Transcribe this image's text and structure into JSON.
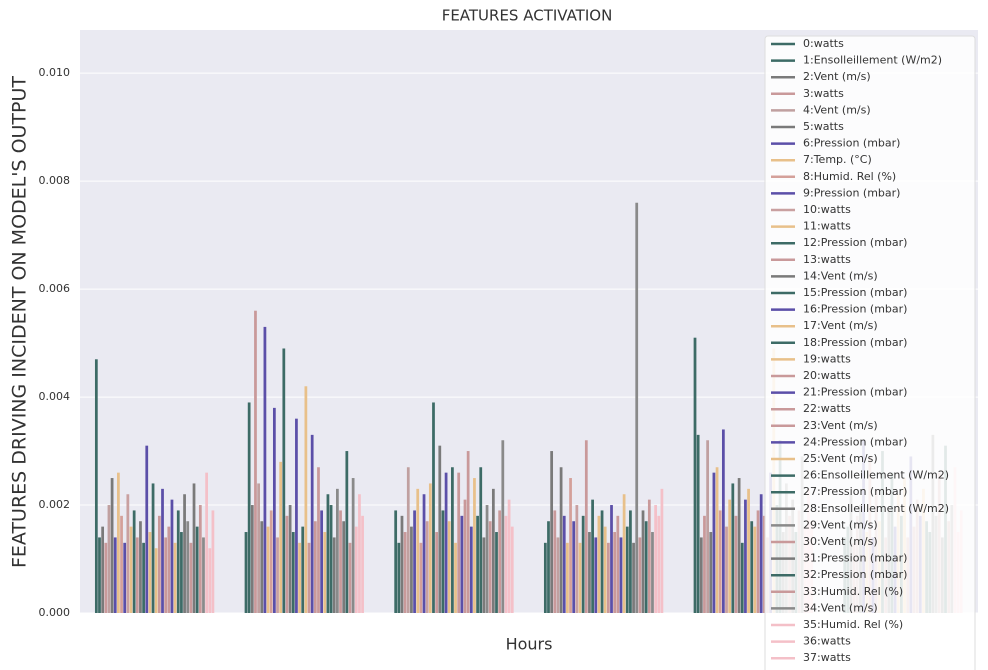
{
  "chart_data": {
    "type": "bar",
    "title": "FEATURES ACTIVATION",
    "xlabel": "Hours",
    "ylabel": "FEATURES DRIVING INCIDENT ON MODEL'S OUTPUT",
    "categories": [
      null,
      null,
      null,
      null,
      null,
      null
    ],
    "ylim": [
      0,
      0.0108
    ],
    "yticks": [
      {
        "value": 0,
        "label": "0.000"
      },
      {
        "value": 0.002,
        "label": "0.002"
      },
      {
        "value": 0.004,
        "label": "0.004"
      },
      {
        "value": 0.006,
        "label": "0.006"
      },
      {
        "value": 0.008,
        "label": "0.008"
      },
      {
        "value": 0.01,
        "label": "0.010"
      }
    ],
    "grid": true,
    "legend": "upper right",
    "series": [
      {
        "name": "0:watts",
        "color": "#3d6b66",
        "values": [
          0.0047,
          0.0015,
          0.0019,
          0.0013,
          0.0051,
          0.0014
        ]
      },
      {
        "name": "1:Ensolleillement (W/m2)",
        "color": "#3d6b66",
        "values": [
          0.0014,
          0.0039,
          0.0013,
          0.0017,
          0.0033,
          0.0016
        ]
      },
      {
        "name": "2:Vent (m/s)",
        "color": "#7a7a7a",
        "values": [
          0.0016,
          0.002,
          0.0018,
          0.003,
          0.0014,
          0.0022
        ]
      },
      {
        "name": "3:watts",
        "color": "#c9999a",
        "values": [
          0.0013,
          0.0056,
          0.0015,
          0.0019,
          0.0018,
          0.0013
        ]
      },
      {
        "name": "4:Vent (m/s)",
        "color": "#c0a0a0",
        "values": [
          0.002,
          0.0024,
          0.0027,
          0.0014,
          0.0032,
          0.0018
        ]
      },
      {
        "name": "5:watts",
        "color": "#7a7a7a",
        "values": [
          0.0025,
          0.0017,
          0.0016,
          0.0027,
          0.0015,
          0.002
        ]
      },
      {
        "name": "6:Pression (mbar)",
        "color": "#5b4fa8",
        "values": [
          0.0014,
          0.0053,
          0.0019,
          0.0018,
          0.0026,
          0.0032
        ]
      },
      {
        "name": "7:Temp. (°C)",
        "color": "#e8c08a",
        "values": [
          0.0026,
          0.0016,
          0.0023,
          0.0013,
          0.0027,
          0.0015
        ]
      },
      {
        "name": "8:Humid. Rel (%)",
        "color": "#d4a09a",
        "values": [
          0.0018,
          0.0019,
          0.0013,
          0.0025,
          0.0019,
          0.0029
        ]
      },
      {
        "name": "9:Pression (mbar)",
        "color": "#5b4fa8",
        "values": [
          0.0013,
          0.0038,
          0.0022,
          0.0017,
          0.0034,
          0.0014
        ]
      },
      {
        "name": "10:watts",
        "color": "#c9a0a0",
        "values": [
          0.0022,
          0.0014,
          0.0017,
          0.002,
          0.0016,
          0.0023
        ]
      },
      {
        "name": "11:watts",
        "color": "#e8c08a",
        "values": [
          0.0016,
          0.0028,
          0.0024,
          0.0013,
          0.0021,
          0.0017
        ]
      },
      {
        "name": "12:Pression (mbar)",
        "color": "#3d6b66",
        "values": [
          0.0019,
          0.0049,
          0.0039,
          0.0018,
          0.0024,
          0.003
        ]
      },
      {
        "name": "13:watts",
        "color": "#c9999a",
        "values": [
          0.0014,
          0.0018,
          0.0015,
          0.0032,
          0.0018,
          0.0014
        ]
      },
      {
        "name": "14:Vent (m/s)",
        "color": "#7a7a7a",
        "values": [
          0.0017,
          0.002,
          0.0031,
          0.0015,
          0.0025,
          0.0019
        ]
      },
      {
        "name": "15:Pression (mbar)",
        "color": "#3d6b66",
        "values": [
          0.0013,
          0.0015,
          0.0019,
          0.0021,
          0.0013,
          0.0026
        ]
      },
      {
        "name": "16:Pression (mbar)",
        "color": "#5b4fa8",
        "values": [
          0.0031,
          0.0036,
          0.0026,
          0.0014,
          0.0021,
          0.0016
        ]
      },
      {
        "name": "17:Vent (m/s)",
        "color": "#e8c08a",
        "values": [
          0.0015,
          0.0013,
          0.0017,
          0.0018,
          0.0023,
          0.0022
        ]
      },
      {
        "name": "18:Pression (mbar)",
        "color": "#3d6b66",
        "values": [
          0.0024,
          0.0016,
          0.0027,
          0.0019,
          0.0017,
          0.0018
        ]
      },
      {
        "name": "19:watts",
        "color": "#e8c08a",
        "values": [
          0.0012,
          0.0042,
          0.0013,
          0.0016,
          0.0016,
          0.0025
        ]
      },
      {
        "name": "20:watts",
        "color": "#c9999a",
        "values": [
          0.0018,
          0.0013,
          0.0026,
          0.0013,
          0.0019,
          0.0014
        ]
      },
      {
        "name": "21:Pression (mbar)",
        "color": "#5b4fa8",
        "values": [
          0.0023,
          0.0033,
          0.0018,
          0.002,
          0.0022,
          0.0029
        ]
      },
      {
        "name": "22:watts",
        "color": "#c9999a",
        "values": [
          0.0014,
          0.0017,
          0.0021,
          0.0015,
          0.0018,
          0.0016
        ]
      },
      {
        "name": "23:Vent (m/s)",
        "color": "#c9999a",
        "values": [
          0.0016,
          0.0027,
          0.003,
          0.0018,
          0.0014,
          0.0021
        ]
      },
      {
        "name": "24:Pression (mbar)",
        "color": "#5b4fa8",
        "values": [
          0.0021,
          0.0019,
          0.0016,
          0.0014,
          0.0026,
          0.0018
        ]
      },
      {
        "name": "25:Vent (m/s)",
        "color": "#e8c08a",
        "values": [
          0.0013,
          0.0015,
          0.0025,
          0.0022,
          0.0049,
          0.0023
        ]
      },
      {
        "name": "26:Ensolleillement (W/m2)",
        "color": "#3d6b66",
        "values": [
          0.0019,
          0.0022,
          0.0018,
          0.0016,
          0.002,
          0.0017
        ]
      },
      {
        "name": "27:Pression (mbar)",
        "color": "#3d6b66",
        "values": [
          0.0015,
          0.002,
          0.0027,
          0.0019,
          0.0032,
          0.0015
        ]
      },
      {
        "name": "28:Ensolleillement (W/m2)",
        "color": "#7a7a7a",
        "values": [
          0.0022,
          0.0014,
          0.0014,
          0.0013,
          0.0015,
          0.0033
        ]
      },
      {
        "name": "29:Vent (m/s)",
        "color": "#8a8a8a",
        "values": [
          0.0017,
          0.0023,
          0.002,
          0.0076,
          0.0024,
          0.0018
        ]
      },
      {
        "name": "30:Vent (m/s)",
        "color": "#c9999a",
        "values": [
          0.0013,
          0.0019,
          0.0017,
          0.0014,
          0.0018,
          0.0026
        ]
      },
      {
        "name": "31:Pression (mbar)",
        "color": "#7a7a7a",
        "values": [
          0.0024,
          0.0017,
          0.0023,
          0.0019,
          0.0021,
          0.0014
        ]
      },
      {
        "name": "32:Pression (mbar)",
        "color": "#3d6b66",
        "values": [
          0.0016,
          0.003,
          0.0015,
          0.0017,
          0.0015,
          0.0031
        ]
      },
      {
        "name": "33:Humid. Rel (%)",
        "color": "#c9999a",
        "values": [
          0.002,
          0.0013,
          0.0019,
          0.0021,
          0.0019,
          0.0017
        ]
      },
      {
        "name": "34:Vent (m/s)",
        "color": "#8a8a8a",
        "values": [
          0.0014,
          0.0025,
          0.0032,
          0.0015,
          0.0029,
          0.002
        ]
      },
      {
        "name": "35:Humid. Rel (%)",
        "color": "#f4c0c8",
        "values": [
          0.0026,
          0.0016,
          0.0018,
          0.002,
          0.0016,
          0.0027
        ]
      },
      {
        "name": "36:watts",
        "color": "#f4c0c8",
        "values": [
          0.0012,
          0.0022,
          0.0021,
          0.0018,
          0.0023,
          0.0015
        ]
      },
      {
        "name": "37:watts",
        "color": "#f4c0c8",
        "values": [
          0.0019,
          0.0018,
          0.0016,
          0.0023,
          0.0017,
          0.0019
        ]
      }
    ]
  }
}
